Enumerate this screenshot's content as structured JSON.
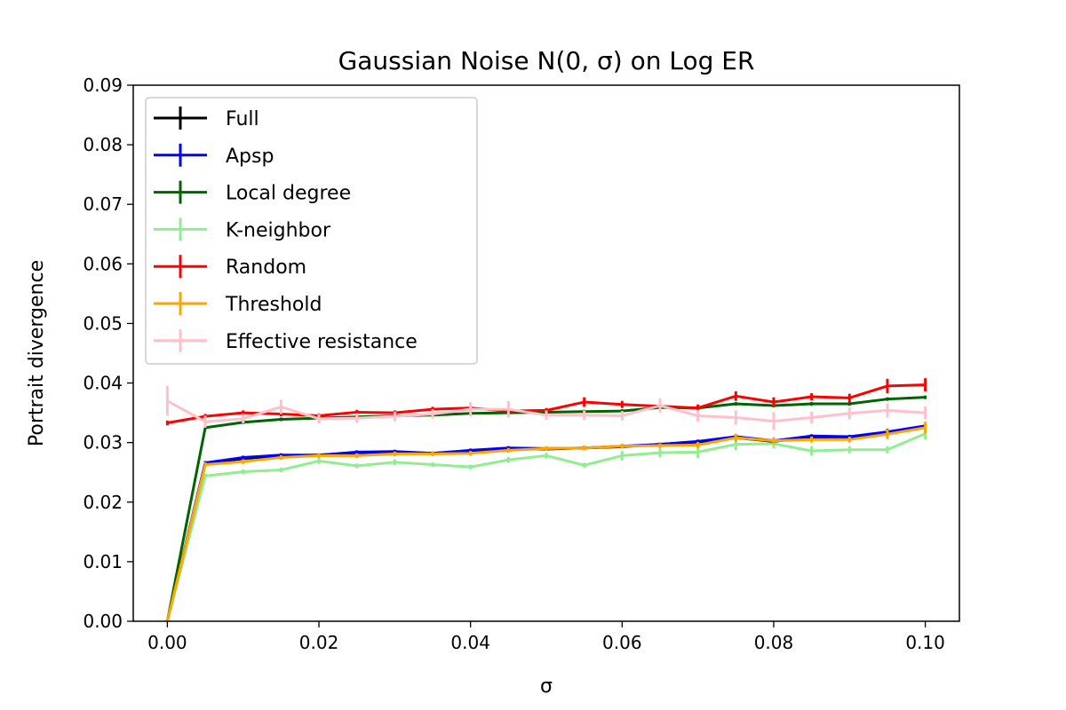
{
  "chart_data": {
    "type": "line",
    "title": "Gaussian Noise N(0, σ) on Log ER",
    "xlabel": "σ",
    "ylabel": "Portrait divergence",
    "xlim": [
      -0.0045,
      0.1045
    ],
    "ylim": [
      0,
      0.09
    ],
    "xticks": [
      0.0,
      0.02,
      0.04,
      0.06,
      0.08,
      0.1
    ],
    "xtick_labels": [
      "0.00",
      "0.02",
      "0.04",
      "0.06",
      "0.08",
      "0.10"
    ],
    "yticks": [
      0.0,
      0.01,
      0.02,
      0.03,
      0.04,
      0.05,
      0.06,
      0.07,
      0.08,
      0.09
    ],
    "ytick_labels": [
      "0.00",
      "0.01",
      "0.02",
      "0.03",
      "0.04",
      "0.05",
      "0.06",
      "0.07",
      "0.08",
      "0.09"
    ],
    "grid": false,
    "legend_position": "top-left",
    "x": [
      0.0,
      0.005,
      0.01,
      0.015,
      0.02,
      0.025,
      0.03,
      0.035,
      0.04,
      0.045,
      0.05,
      0.055,
      0.06,
      0.065,
      0.07,
      0.075,
      0.08,
      0.085,
      0.09,
      0.095,
      0.1
    ],
    "series": [
      {
        "name": "Full",
        "color": "#000000",
        "values": [
          0.0,
          0.0265,
          0.0273,
          0.0278,
          0.0279,
          0.0283,
          0.0284,
          0.0282,
          0.0286,
          0.029,
          0.0289,
          0.0291,
          0.0293,
          0.0297,
          0.0301,
          0.0308,
          0.0302,
          0.0309,
          0.0308,
          0.0316,
          0.0327
        ],
        "errors": [
          0,
          0.0002,
          0.0002,
          0.0002,
          0.0002,
          0.0002,
          0.0002,
          0.0002,
          0.0002,
          0.0002,
          0.0002,
          0.0002,
          0.0002,
          0.0002,
          0.0002,
          0.0002,
          0.0002,
          0.0002,
          0.0002,
          0.0002,
          0.0002
        ]
      },
      {
        "name": "Apsp",
        "color": "#0000ff",
        "values": [
          0.0,
          0.0266,
          0.0275,
          0.0279,
          0.0279,
          0.0284,
          0.0285,
          0.0282,
          0.0287,
          0.0291,
          0.029,
          0.0291,
          0.0294,
          0.0297,
          0.0302,
          0.031,
          0.0303,
          0.0311,
          0.031,
          0.0318,
          0.0328
        ],
        "errors": [
          0,
          0.0003,
          0.0003,
          0.0003,
          0.0003,
          0.0003,
          0.0003,
          0.0003,
          0.0003,
          0.0003,
          0.0003,
          0.0003,
          0.0003,
          0.0003,
          0.0003,
          0.0003,
          0.0003,
          0.0003,
          0.0003,
          0.0005,
          0.0003
        ]
      },
      {
        "name": "Local degree",
        "color": "#006400",
        "values": [
          0.0,
          0.0325,
          0.0334,
          0.0339,
          0.0341,
          0.0343,
          0.0345,
          0.0346,
          0.0349,
          0.035,
          0.0351,
          0.0352,
          0.0353,
          0.0359,
          0.0358,
          0.0365,
          0.0362,
          0.0365,
          0.0365,
          0.0373,
          0.0376
        ],
        "errors": [
          0,
          0.0003,
          0.0003,
          0.0003,
          0.0003,
          0.0003,
          0.0003,
          0.0003,
          0.0003,
          0.0003,
          0.0003,
          0.0003,
          0.0003,
          0.0003,
          0.0003,
          0.0003,
          0.0003,
          0.0003,
          0.0003,
          0.0003,
          0.0003
        ]
      },
      {
        "name": "K-neighbor",
        "color": "#90ee90",
        "values": [
          0.0,
          0.0244,
          0.0251,
          0.0254,
          0.0269,
          0.0261,
          0.0267,
          0.0263,
          0.0259,
          0.0271,
          0.0278,
          0.0262,
          0.0278,
          0.0283,
          0.0284,
          0.0297,
          0.0298,
          0.0286,
          0.0288,
          0.0288,
          0.0315
        ],
        "errors": [
          0,
          0.0004,
          0.0004,
          0.0004,
          0.0005,
          0.0004,
          0.0005,
          0.0004,
          0.0004,
          0.0005,
          0.0005,
          0.0004,
          0.0008,
          0.0008,
          0.001,
          0.001,
          0.0008,
          0.0008,
          0.0006,
          0.0006,
          0.001
        ]
      },
      {
        "name": "Random",
        "color": "#ff0000",
        "values": [
          0.0333,
          0.0344,
          0.035,
          0.0348,
          0.0345,
          0.0351,
          0.035,
          0.0356,
          0.0358,
          0.0353,
          0.0354,
          0.0368,
          0.0364,
          0.0361,
          0.0358,
          0.0378,
          0.0368,
          0.0377,
          0.0375,
          0.0395,
          0.0397
        ],
        "errors": [
          0.0004,
          0.0004,
          0.0004,
          0.0004,
          0.0004,
          0.0004,
          0.0004,
          0.0004,
          0.0004,
          0.0004,
          0.0004,
          0.0008,
          0.0006,
          0.0004,
          0.0006,
          0.0008,
          0.0008,
          0.0006,
          0.0007,
          0.0012,
          0.0011
        ]
      },
      {
        "name": "Threshold",
        "color": "#ffa500",
        "values": [
          0.0,
          0.0263,
          0.0268,
          0.0275,
          0.0278,
          0.0278,
          0.0281,
          0.0281,
          0.0282,
          0.0287,
          0.029,
          0.0291,
          0.0294,
          0.0295,
          0.0296,
          0.0308,
          0.0303,
          0.0305,
          0.0305,
          0.0314,
          0.0325
        ],
        "errors": [
          0,
          0.0004,
          0.0004,
          0.0004,
          0.0004,
          0.0004,
          0.0004,
          0.0004,
          0.0004,
          0.0004,
          0.0004,
          0.0004,
          0.0004,
          0.0004,
          0.0005,
          0.0007,
          0.0006,
          0.0005,
          0.0005,
          0.0008,
          0.001
        ]
      },
      {
        "name": "Effective resistance",
        "color": "#ffc0cb",
        "values": [
          0.037,
          0.0335,
          0.034,
          0.036,
          0.034,
          0.0341,
          0.0344,
          0.0348,
          0.0356,
          0.0356,
          0.0346,
          0.0346,
          0.0345,
          0.0362,
          0.0345,
          0.0342,
          0.0336,
          0.0342,
          0.0349,
          0.0354,
          0.035
        ],
        "errors": [
          0.0025,
          0.001,
          0.0008,
          0.0012,
          0.0008,
          0.0008,
          0.0008,
          0.0008,
          0.0012,
          0.0014,
          0.0008,
          0.0008,
          0.0008,
          0.0012,
          0.001,
          0.0012,
          0.0015,
          0.001,
          0.001,
          0.0012,
          0.0011
        ]
      }
    ]
  }
}
